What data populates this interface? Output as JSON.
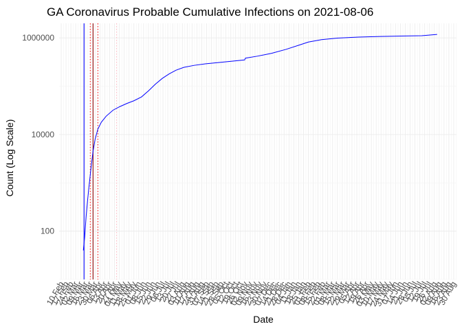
{
  "chart_data": {
    "type": "line",
    "title": "GA Coronavirus Probable Cumulative Infections on 2021-08-06",
    "xlabel": "Date",
    "ylabel": "Count (Log Scale)",
    "y_scale": "log10",
    "ylim": [
      10,
      2000000
    ],
    "xlim": [
      "2020-02-07",
      "2021-09-03"
    ],
    "y_ticks": [
      {
        "value": 100,
        "label": "100"
      },
      {
        "value": 10000,
        "label": "10000"
      },
      {
        "value": 1000000,
        "label": "1000000"
      }
    ],
    "x_tick_labels": [
      {
        "date": "2020-02-10",
        "label": "10 Feb"
      },
      {
        "date": "2020-02-17",
        "label": "17 Feb"
      },
      {
        "date": "2020-02-24",
        "label": "24 Feb"
      },
      {
        "date": "2020-03-02",
        "label": "02 Mar"
      },
      {
        "date": "2020-03-09",
        "label": "09 Mar"
      },
      {
        "date": "2020-03-16",
        "label": "16 Mar"
      },
      {
        "date": "2020-03-23",
        "label": "23 Mar"
      },
      {
        "date": "2020-03-30",
        "label": "30 Mar"
      },
      {
        "date": "2020-04-06",
        "label": "06 Apr"
      },
      {
        "date": "2020-04-13",
        "label": "13 Apr"
      },
      {
        "date": "2020-04-20",
        "label": "20 Apr"
      },
      {
        "date": "2020-04-27",
        "label": "27 Apr"
      },
      {
        "date": "2020-05-04",
        "label": "04 May"
      },
      {
        "date": "2020-05-11",
        "label": "11 May"
      },
      {
        "date": "2020-05-18",
        "label": "18 May"
      },
      {
        "date": "2020-05-25",
        "label": "25 May"
      },
      {
        "date": "2020-06-01",
        "label": "01 Jun"
      },
      {
        "date": "2020-06-08",
        "label": "08 Jun"
      },
      {
        "date": "2020-06-15",
        "label": "15 Jun"
      },
      {
        "date": "2020-06-22",
        "label": "22 Jun"
      },
      {
        "date": "2020-06-29",
        "label": "29 Jun"
      },
      {
        "date": "2020-07-06",
        "label": "06 Jul"
      },
      {
        "date": "2020-07-13",
        "label": "13 Jul"
      },
      {
        "date": "2020-07-20",
        "label": "20 Jul"
      },
      {
        "date": "2020-07-27",
        "label": "27 Jul"
      },
      {
        "date": "2020-08-03",
        "label": "03 Aug"
      },
      {
        "date": "2020-08-10",
        "label": "10 Aug"
      },
      {
        "date": "2020-08-17",
        "label": "17 Aug"
      },
      {
        "date": "2020-08-24",
        "label": "24 Aug"
      },
      {
        "date": "2020-08-31",
        "label": "31 Aug"
      },
      {
        "date": "2020-09-07",
        "label": "07 Sep"
      },
      {
        "date": "2020-09-14",
        "label": "14 Sep"
      },
      {
        "date": "2020-09-21",
        "label": "21 Sep"
      },
      {
        "date": "2020-09-28",
        "label": "28 Sep"
      },
      {
        "date": "2020-10-05",
        "label": "05 Oct"
      },
      {
        "date": "2020-10-12",
        "label": "12 Oct"
      },
      {
        "date": "2020-10-19",
        "label": "19 Oct"
      },
      {
        "date": "2020-10-26",
        "label": "26 Oct"
      },
      {
        "date": "2020-11-02",
        "label": "02 Nov"
      },
      {
        "date": "2020-11-09",
        "label": "09 Nov"
      },
      {
        "date": "2020-11-16",
        "label": "16 Nov"
      },
      {
        "date": "2020-11-23",
        "label": "23 Nov"
      },
      {
        "date": "2020-11-30",
        "label": "30 Nov"
      },
      {
        "date": "2020-12-07",
        "label": "07 Dec"
      },
      {
        "date": "2020-12-14",
        "label": "14 Dec"
      },
      {
        "date": "2020-12-21",
        "label": "21 Dec"
      },
      {
        "date": "2020-12-28",
        "label": "28 Dec"
      },
      {
        "date": "2021-01-04",
        "label": "04 Jan"
      },
      {
        "date": "2021-01-11",
        "label": "11 Jan"
      },
      {
        "date": "2021-01-18",
        "label": "18 Jan"
      },
      {
        "date": "2021-01-25",
        "label": "25 Jan"
      },
      {
        "date": "2021-02-01",
        "label": "01 Feb"
      },
      {
        "date": "2021-02-08",
        "label": "08 Feb"
      },
      {
        "date": "2021-02-15",
        "label": "15 Feb"
      },
      {
        "date": "2021-02-22",
        "label": "22 Feb"
      },
      {
        "date": "2021-03-01",
        "label": "01 Mar"
      },
      {
        "date": "2021-03-08",
        "label": "08 Mar"
      },
      {
        "date": "2021-03-15",
        "label": "15 Mar"
      },
      {
        "date": "2021-03-22",
        "label": "22 Mar"
      },
      {
        "date": "2021-03-29",
        "label": "29 Mar"
      },
      {
        "date": "2021-04-05",
        "label": "05 Apr"
      },
      {
        "date": "2021-04-12",
        "label": "12 Apr"
      },
      {
        "date": "2021-04-19",
        "label": "19 Apr"
      },
      {
        "date": "2021-04-26",
        "label": "26 Apr"
      },
      {
        "date": "2021-05-03",
        "label": "03 May"
      },
      {
        "date": "2021-05-10",
        "label": "10 May"
      },
      {
        "date": "2021-05-17",
        "label": "17 May"
      },
      {
        "date": "2021-05-24",
        "label": "24 May"
      },
      {
        "date": "2021-05-31",
        "label": "31 May"
      },
      {
        "date": "2021-06-07",
        "label": "07 Jun"
      },
      {
        "date": "2021-06-14",
        "label": "14 Jun"
      },
      {
        "date": "2021-06-21",
        "label": "21 Jun"
      },
      {
        "date": "2021-06-28",
        "label": "28 Jun"
      },
      {
        "date": "2021-07-05",
        "label": "05 Jul"
      },
      {
        "date": "2021-07-12",
        "label": "12 Jul"
      },
      {
        "date": "2021-07-19",
        "label": "19 Jul"
      },
      {
        "date": "2021-07-26",
        "label": "26 Jul"
      },
      {
        "date": "2021-08-02",
        "label": "02 Aug"
      },
      {
        "date": "2021-08-09",
        "label": "09 Aug"
      },
      {
        "date": "2021-08-16",
        "label": "16 Aug"
      },
      {
        "date": "2021-08-23",
        "label": "23 Aug"
      },
      {
        "date": "2021-08-30",
        "label": "30 Aug"
      }
    ],
    "grid": true,
    "reference_lines": [
      {
        "date": "2020-03-14",
        "style": "solid",
        "color": "#0000ff"
      },
      {
        "date": "2020-03-23",
        "style": "dotted",
        "color": "#ff0000"
      },
      {
        "date": "2020-03-27",
        "style": "solid",
        "color": "#8b0000"
      },
      {
        "date": "2020-04-03",
        "style": "dotted",
        "color": "#ff0000"
      },
      {
        "date": "2020-04-30",
        "style": "dotted",
        "color": "#ffb6c1"
      }
    ],
    "series": [
      {
        "color": "#0000ff",
        "points": [
          {
            "x": "2020-03-13",
            "y": 40
          },
          {
            "x": "2020-03-15",
            "y": 80
          },
          {
            "x": "2020-03-17",
            "y": 200
          },
          {
            "x": "2020-03-19",
            "y": 420
          },
          {
            "x": "2020-03-21",
            "y": 800
          },
          {
            "x": "2020-03-24",
            "y": 2000
          },
          {
            "x": "2020-03-27",
            "y": 4500
          },
          {
            "x": "2020-03-30",
            "y": 8000
          },
          {
            "x": "2020-04-03",
            "y": 13000
          },
          {
            "x": "2020-04-08",
            "y": 18000
          },
          {
            "x": "2020-04-15",
            "y": 24000
          },
          {
            "x": "2020-04-25",
            "y": 32000
          },
          {
            "x": "2020-05-05",
            "y": 38000
          },
          {
            "x": "2020-05-15",
            "y": 44000
          },
          {
            "x": "2020-05-25",
            "y": 50000
          },
          {
            "x": "2020-06-05",
            "y": 60000
          },
          {
            "x": "2020-06-15",
            "y": 80000
          },
          {
            "x": "2020-06-25",
            "y": 110000
          },
          {
            "x": "2020-07-05",
            "y": 145000
          },
          {
            "x": "2020-07-15",
            "y": 180000
          },
          {
            "x": "2020-07-25",
            "y": 215000
          },
          {
            "x": "2020-08-05",
            "y": 245000
          },
          {
            "x": "2020-08-20",
            "y": 270000
          },
          {
            "x": "2020-09-05",
            "y": 290000
          },
          {
            "x": "2020-09-25",
            "y": 310000
          },
          {
            "x": "2020-10-15",
            "y": 330000
          },
          {
            "x": "2020-11-01",
            "y": 350000
          },
          {
            "x": "2020-11-02",
            "y": 380000
          },
          {
            "x": "2020-11-20",
            "y": 420000
          },
          {
            "x": "2020-12-10",
            "y": 480000
          },
          {
            "x": "2020-12-31",
            "y": 580000
          },
          {
            "x": "2021-01-20",
            "y": 720000
          },
          {
            "x": "2021-02-01",
            "y": 820000
          },
          {
            "x": "2021-02-20",
            "y": 920000
          },
          {
            "x": "2021-03-15",
            "y": 990000
          },
          {
            "x": "2021-04-15",
            "y": 1040000
          },
          {
            "x": "2021-05-15",
            "y": 1070000
          },
          {
            "x": "2021-06-15",
            "y": 1090000
          },
          {
            "x": "2021-07-15",
            "y": 1110000
          },
          {
            "x": "2021-08-06",
            "y": 1180000
          }
        ]
      }
    ]
  }
}
